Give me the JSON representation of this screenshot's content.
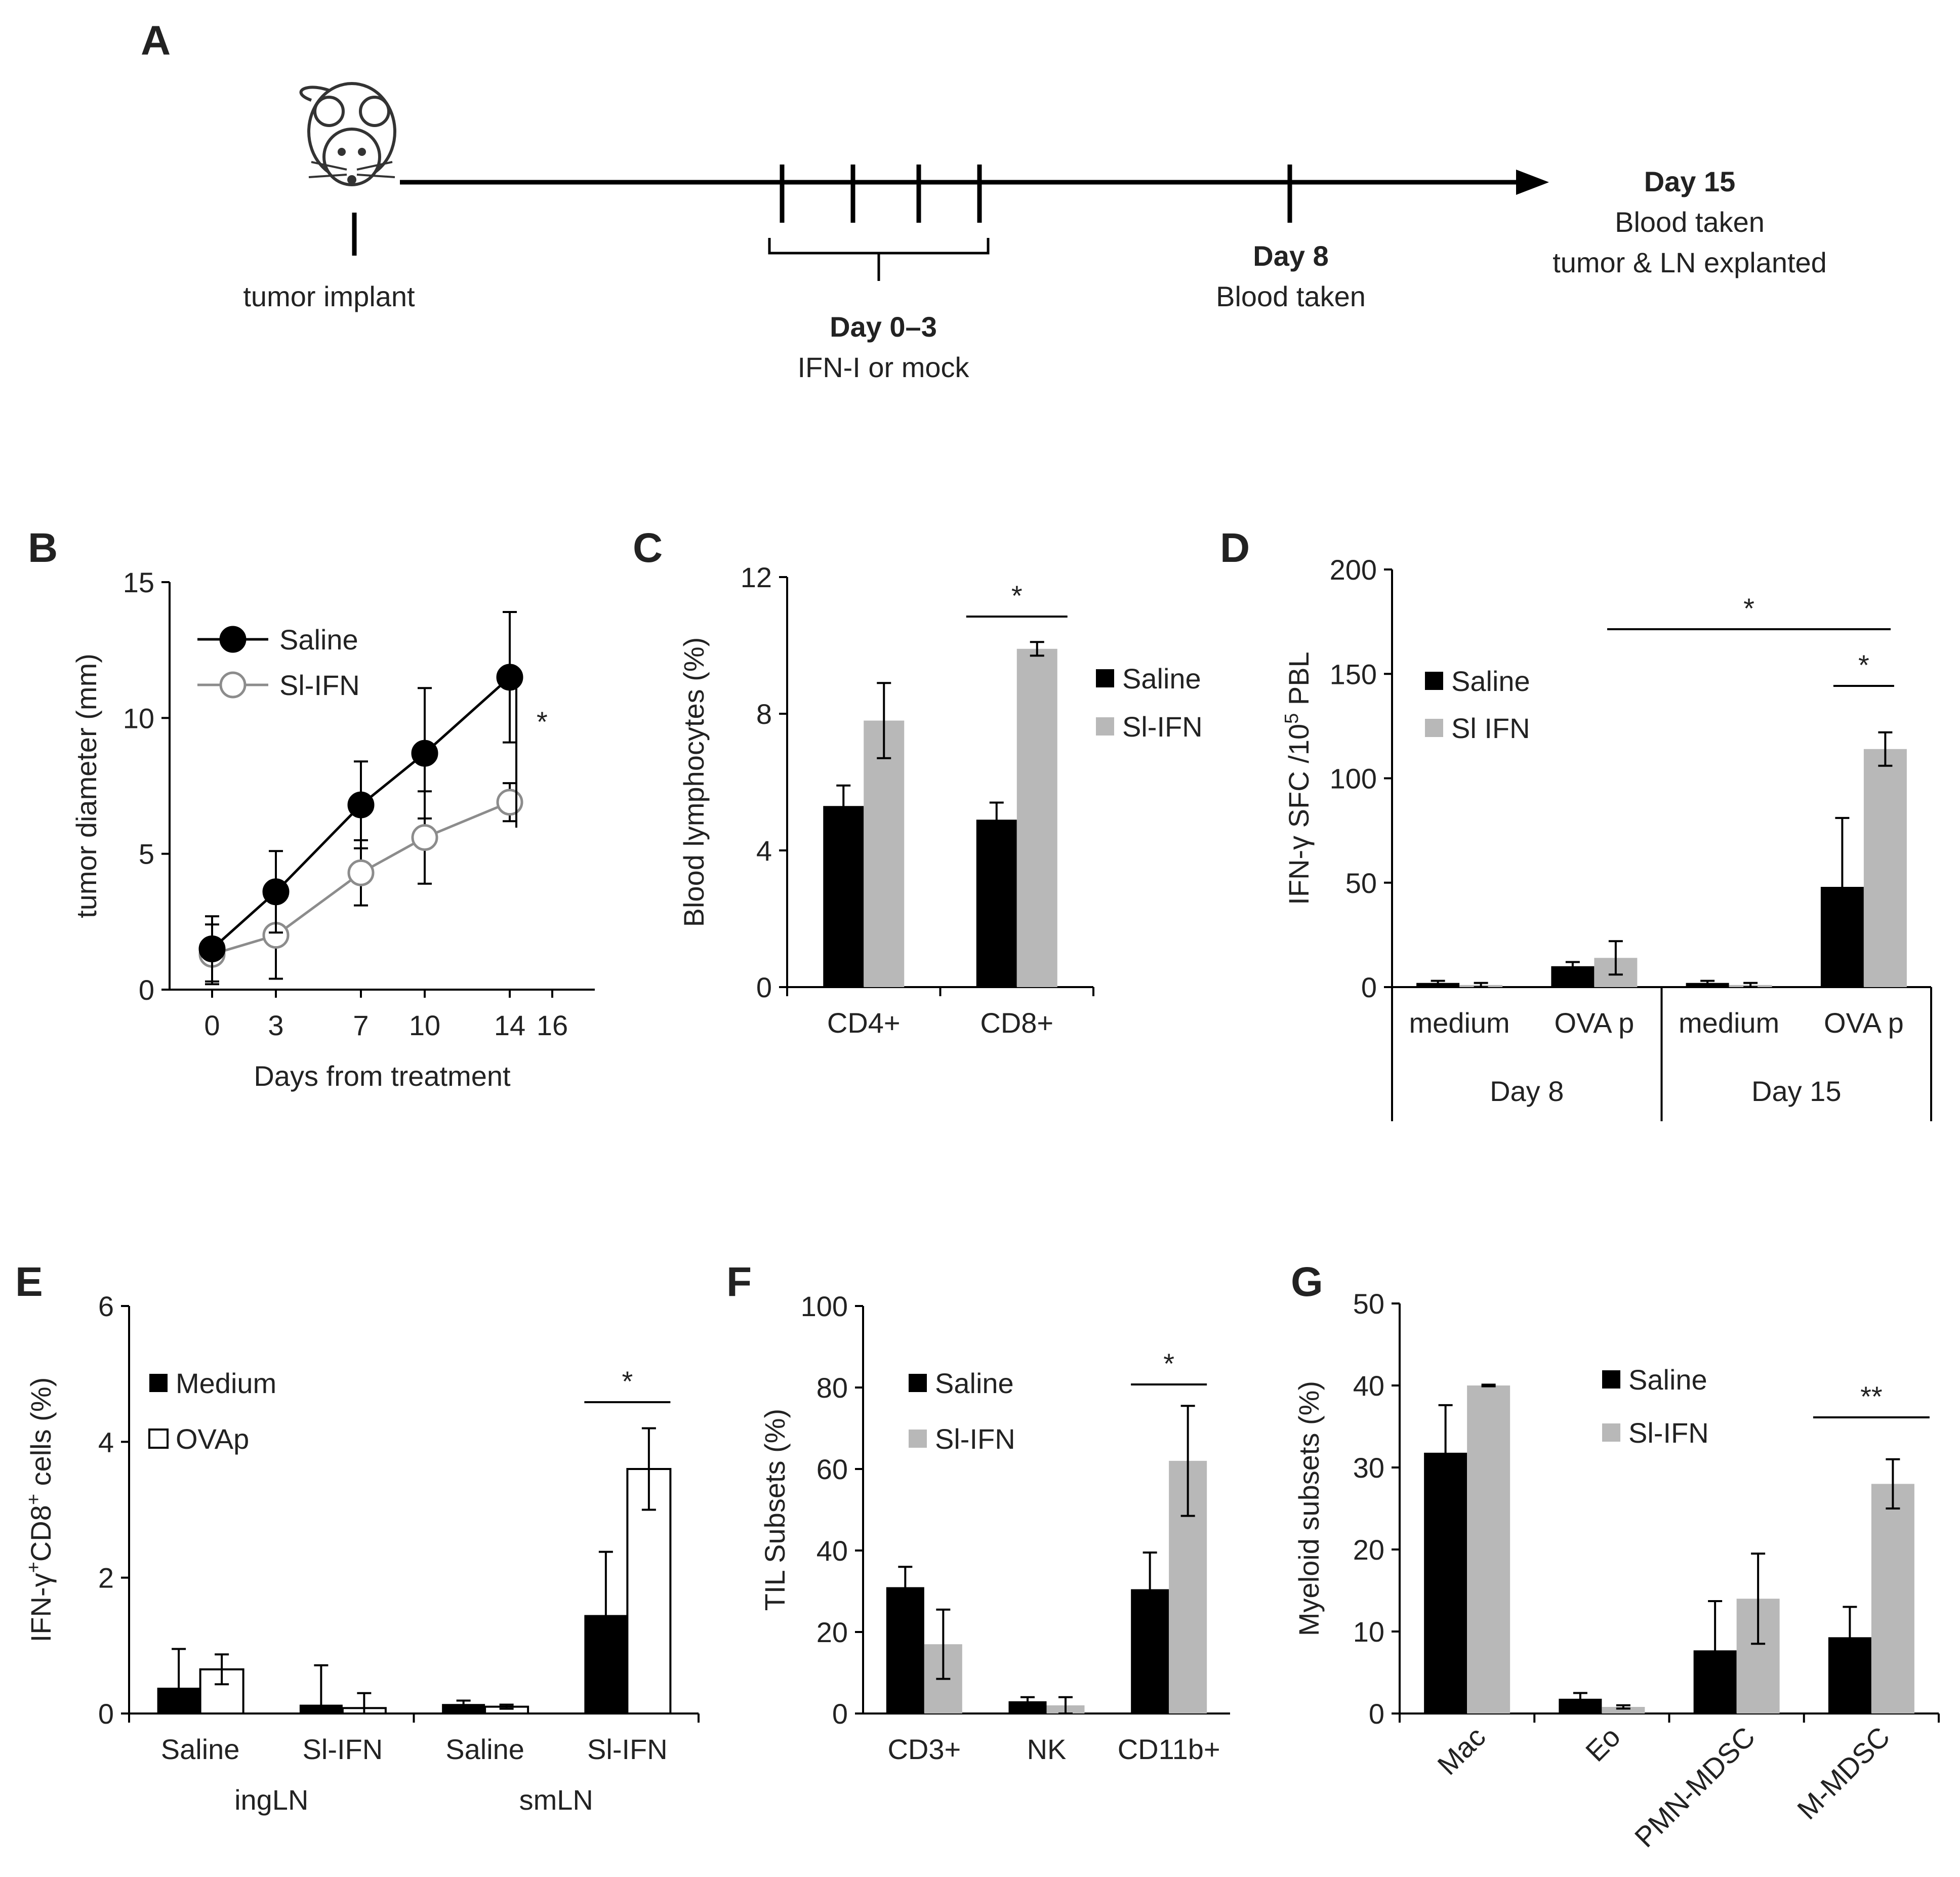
{
  "panels": {
    "a": {
      "letter": "A"
    },
    "b": {
      "letter": "B"
    },
    "c": {
      "letter": "C"
    },
    "d": {
      "letter": "D"
    },
    "e": {
      "letter": "E"
    },
    "f": {
      "letter": "F"
    },
    "g": {
      "letter": "G"
    }
  },
  "timeline": {
    "implant_label": "tumor implant",
    "treatment_day": "Day 0–3",
    "treatment_desc": "IFN-I or mock",
    "day8_title": "Day 8",
    "day8_desc": "Blood taken",
    "day15_title": "Day 15",
    "day15_desc1": "Blood taken",
    "day15_desc2": "tumor & LN explanted"
  },
  "chart_data": [
    {
      "id": "b",
      "type": "line",
      "xlabel": "Days from treatment",
      "ylabel": "tumor diameter (mm)",
      "xticks": [
        0,
        3,
        7,
        10,
        14,
        16
      ],
      "xtick_labels": [
        "0",
        "3",
        "7",
        "10",
        "14",
        "16"
      ],
      "yticks": [
        0,
        5,
        10,
        15
      ],
      "xlim": [
        -2,
        18
      ],
      "ylim": [
        0,
        15
      ],
      "x": [
        0,
        3,
        7,
        10,
        14
      ],
      "series": [
        {
          "name": "Saline",
          "color": "#000000",
          "marker": "filled-circle",
          "values": [
            1.5,
            3.6,
            6.8,
            8.7,
            11.5
          ],
          "errors": [
            1.2,
            1.5,
            1.6,
            2.4,
            2.4
          ]
        },
        {
          "name": "Sl-IFN",
          "color": "#8c8c8c",
          "marker": "open-circle",
          "values": [
            1.3,
            2.0,
            4.3,
            5.6,
            6.9
          ],
          "errors": [
            1.1,
            1.6,
            1.2,
            1.7,
            0.7
          ]
        }
      ],
      "significance": [
        "*"
      ]
    },
    {
      "id": "c",
      "type": "bar",
      "ylabel": "Blood lymphocytes (%)",
      "categories": [
        "CD4+",
        "CD8+"
      ],
      "yticks": [
        0,
        4,
        8,
        12
      ],
      "ylim": [
        0,
        12
      ],
      "series": [
        {
          "name": "Saline",
          "color": "#000000",
          "values": [
            5.3,
            4.9
          ],
          "errors": [
            0.6,
            0.5
          ]
        },
        {
          "name": "Sl-IFN",
          "color": "#b8b8b8",
          "values": [
            7.8,
            9.9
          ],
          "errors": [
            1.1,
            0.2
          ]
        }
      ],
      "significance": [
        "*"
      ]
    },
    {
      "id": "d",
      "type": "bar",
      "ylabel": "IFN-γ SFC /10",
      "ylabel_sup": "5",
      "ylabel_tail": " PBL",
      "categories": [
        "medium",
        "OVA p",
        "medium",
        "OVA p"
      ],
      "groups": [
        "Day 8",
        "Day 15"
      ],
      "yticks": [
        0,
        50,
        100,
        150,
        200
      ],
      "ylim": [
        0,
        200
      ],
      "series": [
        {
          "name": "Saline",
          "color": "#000000",
          "values": [
            2,
            10,
            2,
            48
          ],
          "errors": [
            1,
            2,
            1,
            33
          ]
        },
        {
          "name": "Sl IFN",
          "color": "#b8b8b8",
          "values": [
            1,
            14,
            1,
            114
          ],
          "errors": [
            1,
            8,
            1,
            8
          ]
        }
      ],
      "significance": [
        "*",
        "*"
      ]
    },
    {
      "id": "e",
      "type": "bar",
      "ylabel_parts": [
        "IFN-γ",
        "+",
        "CD8",
        "+",
        " cells (%)"
      ],
      "categories": [
        "Saline",
        "Sl-IFN",
        "Saline",
        "Sl-IFN"
      ],
      "groups": [
        "ingLN",
        "smLN"
      ],
      "yticks": [
        0,
        2,
        4,
        6
      ],
      "ylim": [
        0,
        6
      ],
      "series": [
        {
          "name": "Medium",
          "color": "#000000",
          "values": [
            0.38,
            0.13,
            0.14,
            1.45
          ],
          "errors": [
            0.57,
            0.58,
            0.05,
            0.93
          ]
        },
        {
          "name": "OVAp",
          "color": "#ffffff",
          "values": [
            0.65,
            0.08,
            0.1,
            3.6
          ],
          "errors": [
            0.22,
            0.22,
            0.03,
            0.6
          ]
        }
      ],
      "significance": [
        "*"
      ]
    },
    {
      "id": "f",
      "type": "bar",
      "ylabel": "TIL Subsets (%)",
      "categories": [
        "CD3+",
        "NK",
        "CD11b+"
      ],
      "yticks": [
        0,
        20,
        40,
        60,
        80,
        100
      ],
      "ylim": [
        0,
        100
      ],
      "series": [
        {
          "name": "Saline",
          "color": "#000000",
          "values": [
            31,
            3,
            30.5
          ],
          "errors": [
            5,
            1,
            9
          ]
        },
        {
          "name": "Sl-IFN",
          "color": "#b8b8b8",
          "values": [
            17,
            2,
            62
          ],
          "errors": [
            8.5,
            2,
            13.5
          ]
        }
      ],
      "significance": [
        "*"
      ]
    },
    {
      "id": "g",
      "type": "bar",
      "ylabel": "Myeloid subsets (%)",
      "categories": [
        "Mac",
        "Eo",
        "PMN-MDSC",
        "M-MDSC"
      ],
      "yticks": [
        0,
        10,
        20,
        30,
        40,
        50
      ],
      "ylim": [
        0,
        50
      ],
      "series": [
        {
          "name": "Saline",
          "color": "#000000",
          "values": [
            31.8,
            1.8,
            7.7,
            9.3
          ],
          "errors": [
            5.8,
            0.7,
            6,
            3.7
          ]
        },
        {
          "name": "Sl-IFN",
          "color": "#b8b8b8",
          "values": [
            40,
            0.8,
            14,
            28
          ],
          "errors": [
            0.1,
            0.2,
            5.5,
            3
          ]
        }
      ],
      "significance": [
        "**"
      ]
    }
  ]
}
